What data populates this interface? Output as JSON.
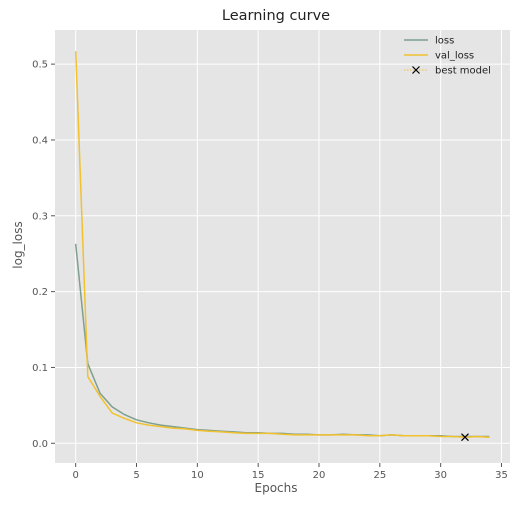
{
  "chart_data": {
    "type": "line",
    "title": "Learning curve",
    "xlabel": "Epochs",
    "ylabel": "log_loss",
    "xlim": [
      -1.7,
      35.7
    ],
    "ylim": [
      -0.026,
      0.545
    ],
    "xticks": [
      0,
      5,
      10,
      15,
      20,
      25,
      30,
      35
    ],
    "yticks": [
      0.0,
      0.1,
      0.2,
      0.3,
      0.4,
      0.5
    ],
    "yticklabels": [
      "0.0",
      "0.1",
      "0.2",
      "0.3",
      "0.4",
      "0.5"
    ],
    "grid": true,
    "legend_position": "top-right",
    "series": [
      {
        "name": "loss",
        "color": "#7f9f8f",
        "style": "solid",
        "x": [
          0,
          1,
          2,
          3,
          4,
          5,
          6,
          7,
          8,
          9,
          10,
          11,
          12,
          13,
          14,
          15,
          16,
          17,
          18,
          19,
          20,
          21,
          22,
          23,
          24,
          25,
          26,
          27,
          28,
          29,
          30,
          31,
          32,
          33,
          34
        ],
        "values": [
          0.263,
          0.105,
          0.066,
          0.048,
          0.038,
          0.031,
          0.027,
          0.024,
          0.022,
          0.02,
          0.018,
          0.017,
          0.016,
          0.015,
          0.014,
          0.014,
          0.013,
          0.013,
          0.012,
          0.012,
          0.011,
          0.011,
          0.012,
          0.011,
          0.011,
          0.01,
          0.011,
          0.01,
          0.01,
          0.01,
          0.01,
          0.009,
          0.009,
          0.009,
          0.009
        ]
      },
      {
        "name": "val_loss",
        "color": "#f2c12e",
        "style": "solid",
        "x": [
          0,
          1,
          2,
          3,
          4,
          5,
          6,
          7,
          8,
          9,
          10,
          11,
          12,
          13,
          14,
          15,
          16,
          17,
          18,
          19,
          20,
          21,
          22,
          23,
          24,
          25,
          26,
          27,
          28,
          29,
          30,
          31,
          32,
          33,
          34
        ],
        "values": [
          0.517,
          0.088,
          0.062,
          0.04,
          0.033,
          0.027,
          0.024,
          0.022,
          0.02,
          0.019,
          0.017,
          0.016,
          0.015,
          0.014,
          0.013,
          0.013,
          0.013,
          0.012,
          0.011,
          0.011,
          0.011,
          0.011,
          0.011,
          0.011,
          0.01,
          0.01,
          0.011,
          0.01,
          0.01,
          0.01,
          0.009,
          0.009,
          0.008,
          0.009,
          0.008
        ]
      },
      {
        "name": "best model",
        "color": "#000000",
        "marker": "x",
        "x": [
          32
        ],
        "values": [
          0.008
        ]
      }
    ]
  }
}
